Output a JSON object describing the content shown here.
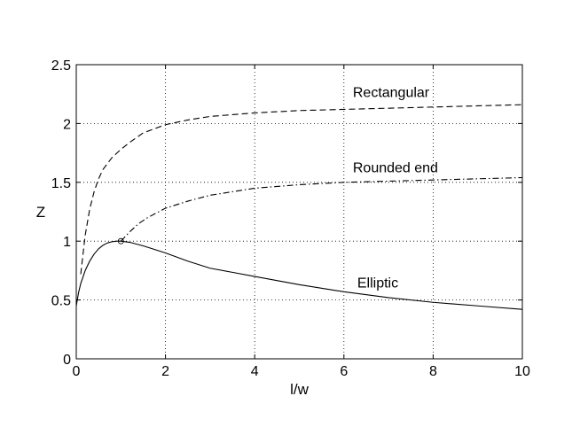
{
  "chart_data": {
    "type": "line",
    "title": "",
    "xlabel": "l/w",
    "ylabel": "Z",
    "xlim": [
      0,
      10
    ],
    "ylim": [
      0,
      2.5
    ],
    "xticks": [
      0,
      2,
      4,
      6,
      8,
      10
    ],
    "xtick_labels": [
      "0",
      "2",
      "4",
      "6",
      "8",
      "10"
    ],
    "yticks": [
      0,
      0.5,
      1,
      1.5,
      2,
      2.5
    ],
    "ytick_labels": [
      "0",
      "0.5",
      "1",
      "1.5",
      "2",
      "2.5"
    ],
    "grid": true,
    "series": [
      {
        "name": "Rectangular",
        "style": "dashed",
        "color": "#000000",
        "x": [
          0.1,
          0.2,
          0.3,
          0.4,
          0.5,
          0.6,
          0.8,
          1.0,
          1.2,
          1.5,
          2.0,
          2.5,
          3.0,
          4.0,
          5.0,
          6.0,
          7.0,
          8.0,
          9.0,
          10.0
        ],
        "y": [
          0.72,
          1.05,
          1.27,
          1.42,
          1.53,
          1.61,
          1.71,
          1.78,
          1.84,
          1.92,
          1.99,
          2.03,
          2.06,
          2.09,
          2.11,
          2.12,
          2.13,
          2.14,
          2.15,
          2.16
        ]
      },
      {
        "name": "Rounded end",
        "style": "dashdot",
        "color": "#000000",
        "x": [
          1.0,
          1.2,
          1.4,
          1.6,
          1.8,
          2.0,
          2.5,
          3.0,
          3.5,
          4.0,
          5.0,
          6.0,
          7.0,
          8.0,
          9.0,
          10.0
        ],
        "y": [
          1.0,
          1.08,
          1.15,
          1.2,
          1.24,
          1.28,
          1.34,
          1.39,
          1.42,
          1.45,
          1.48,
          1.5,
          1.51,
          1.52,
          1.53,
          1.54
        ]
      },
      {
        "name": "Elliptic",
        "style": "solid",
        "color": "#000000",
        "x": [
          0.0,
          0.05,
          0.1,
          0.2,
          0.3,
          0.4,
          0.5,
          0.6,
          0.7,
          0.8,
          0.9,
          1.0,
          1.2,
          1.5,
          2.0,
          2.5,
          3.0,
          3.5,
          4.0,
          5.0,
          6.0,
          7.0,
          8.0,
          9.0,
          10.0
        ],
        "y": [
          0.45,
          0.56,
          0.64,
          0.75,
          0.83,
          0.89,
          0.935,
          0.965,
          0.985,
          0.995,
          1.0,
          1.0,
          0.99,
          0.96,
          0.9,
          0.83,
          0.77,
          0.735,
          0.7,
          0.63,
          0.57,
          0.52,
          0.48,
          0.45,
          0.42
        ]
      }
    ],
    "markers": [
      {
        "x": 1.0,
        "y": 1.0,
        "shape": "circle-open"
      }
    ],
    "annotations": [
      {
        "text": "Rectangular",
        "x": 6.2,
        "y": 2.27
      },
      {
        "text": "Rounded end",
        "x": 6.2,
        "y": 1.63
      },
      {
        "text": "Elliptic",
        "x": 6.3,
        "y": 0.65
      }
    ]
  }
}
